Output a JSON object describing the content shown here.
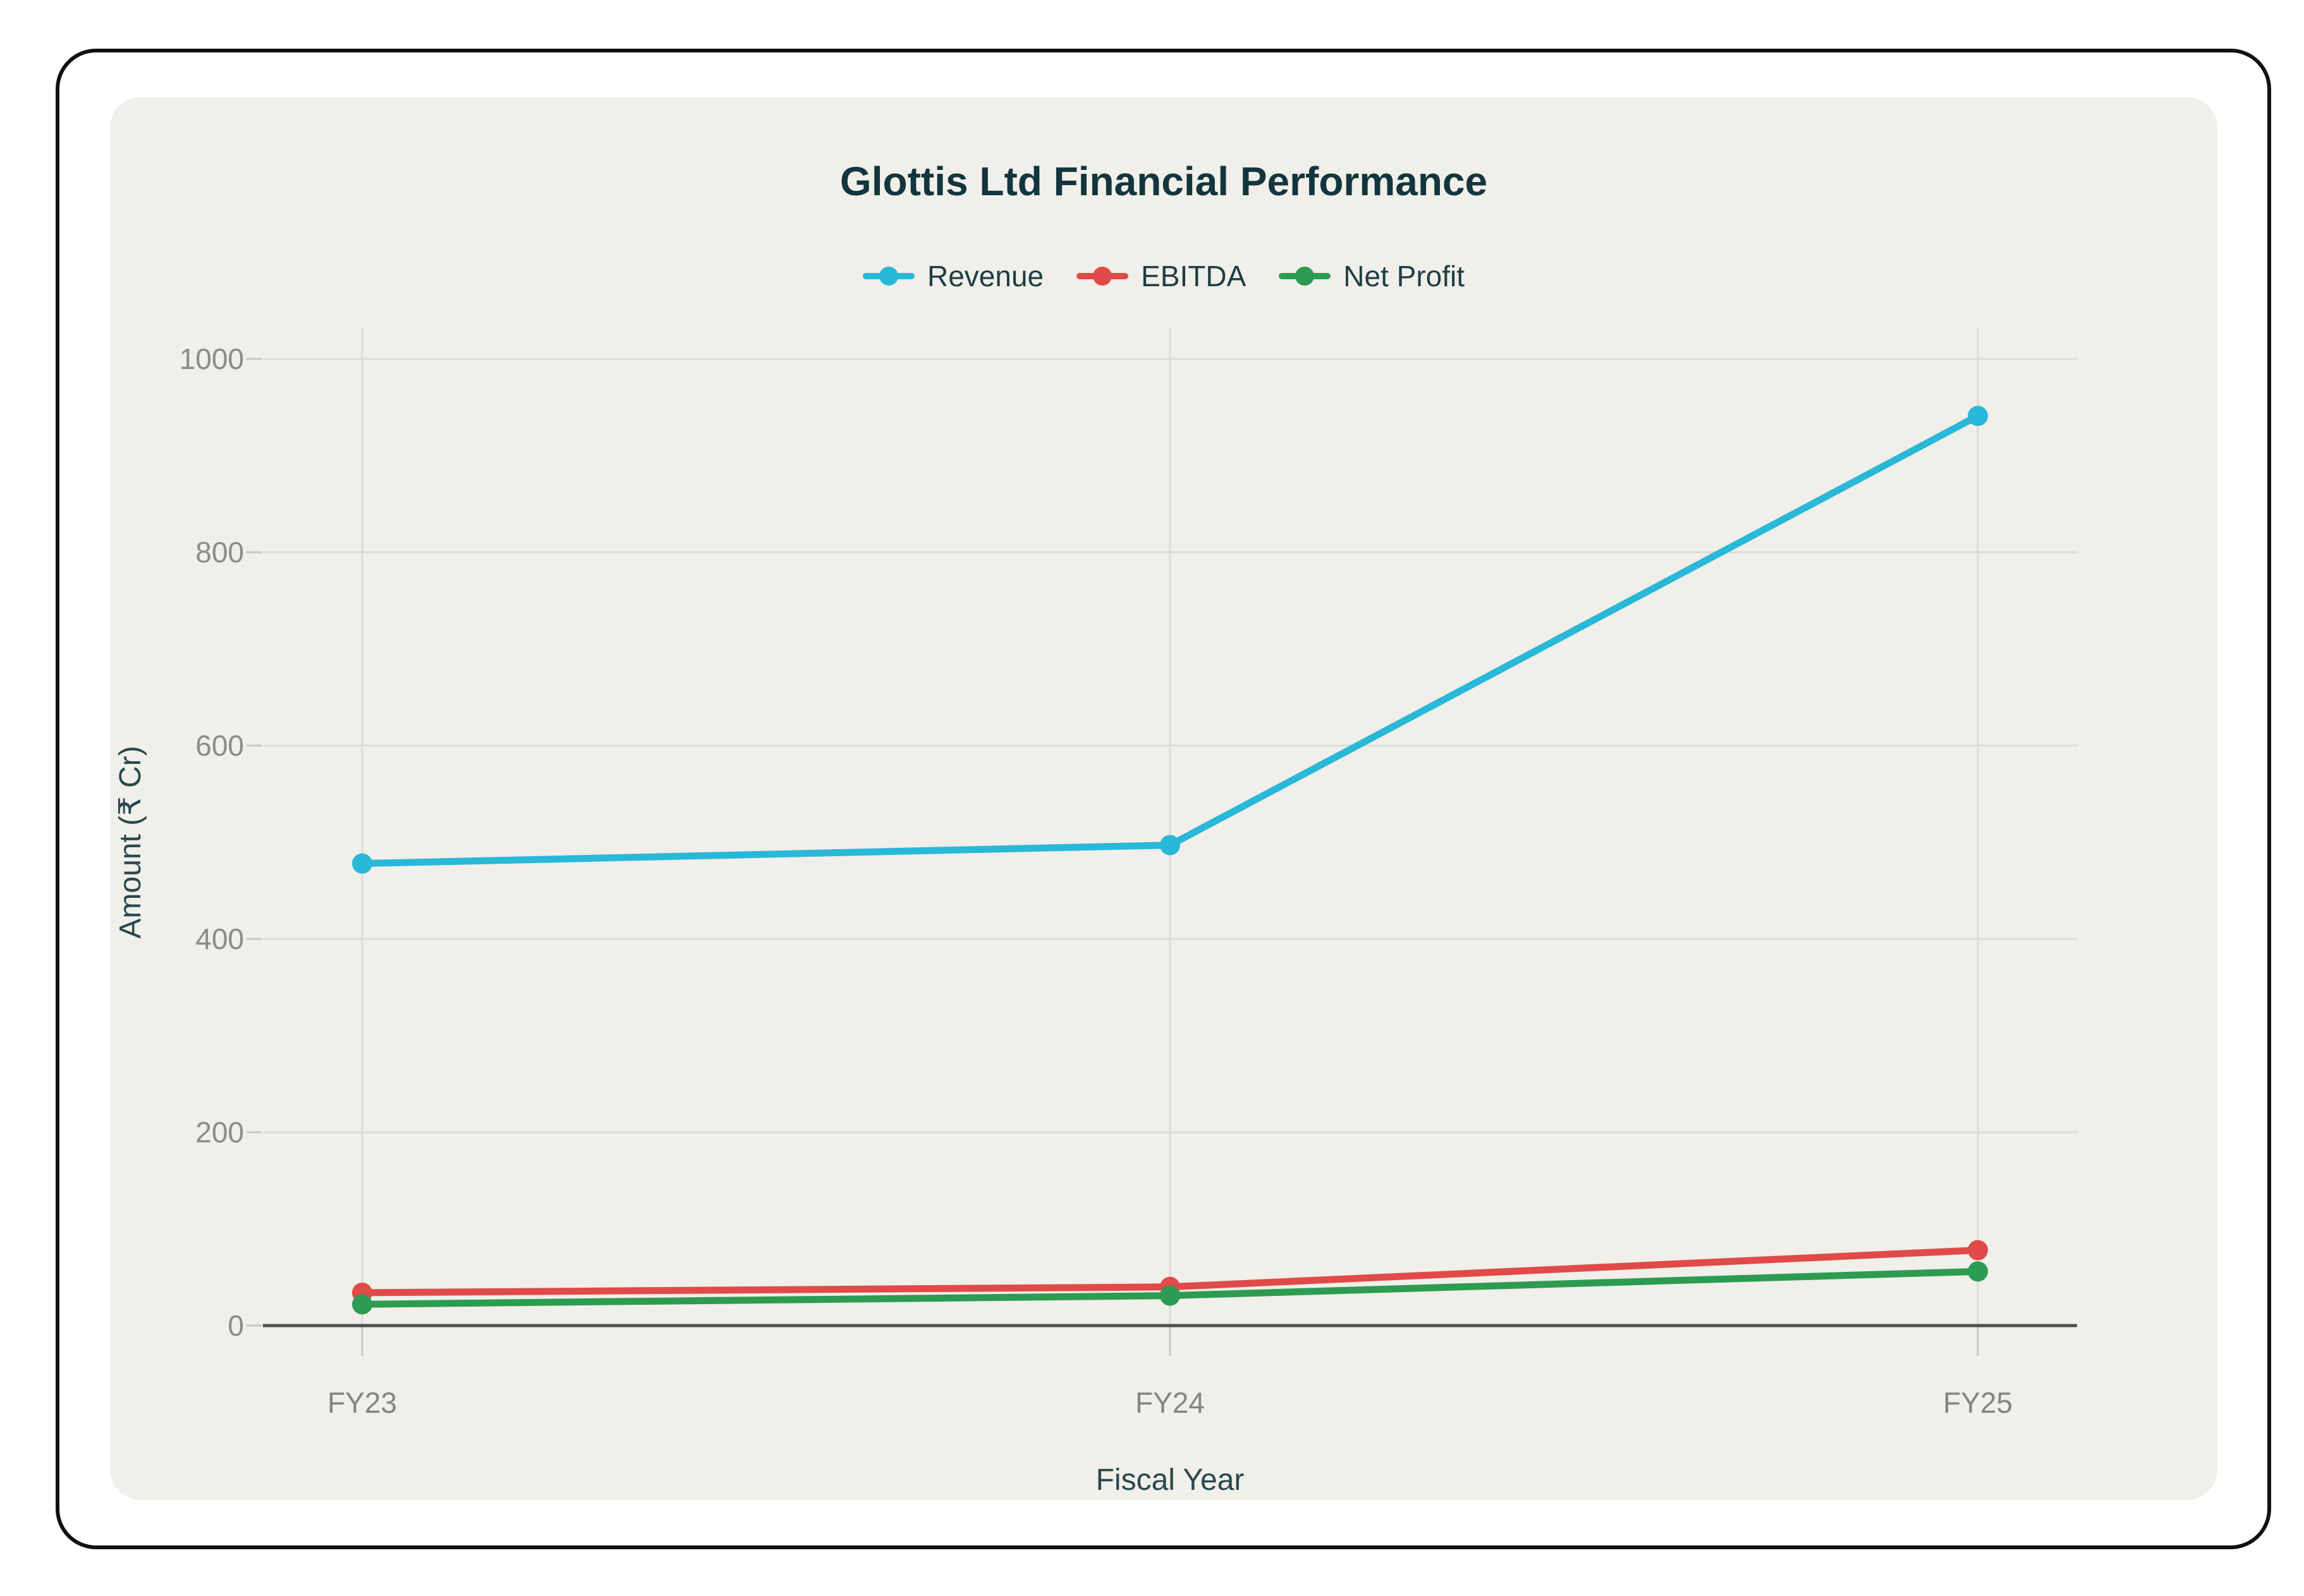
{
  "card": {
    "title": "Glottis Ltd Financial Performance"
  },
  "chart_data": {
    "type": "line",
    "title": "Glottis Ltd Financial Performance",
    "categories": [
      "FY23",
      "FY24",
      "FY25"
    ],
    "series": [
      {
        "name": "Revenue",
        "color": "#29b8d8",
        "values": [
          478,
          497,
          941
        ]
      },
      {
        "name": "EBITDA",
        "color": "#e04a48",
        "values": [
          34,
          40,
          78
        ]
      },
      {
        "name": "Net Profit",
        "color": "#2d9b51",
        "values": [
          22,
          31,
          56
        ]
      }
    ],
    "xlabel": "Fiscal Year",
    "ylabel": "Amount (₹ Cr)",
    "ylim": [
      0,
      1000
    ],
    "yticks": [
      0,
      200,
      400,
      600,
      800,
      1000
    ],
    "grid": true,
    "legend_position": "top"
  },
  "colors": {
    "page_bg": "#ffffff",
    "frame_border": "#111111",
    "card_bg": "#f0efe9",
    "title_text": "#13353e",
    "axis_title_text": "#29474f",
    "tick_text": "#8b8b8b",
    "x_tick_text": "#848484",
    "gridline": "#dcdbd3",
    "tick_dash": "#c9c8c0",
    "zero_line": "#4d4d4d",
    "legend_text": "#1f3d45"
  }
}
